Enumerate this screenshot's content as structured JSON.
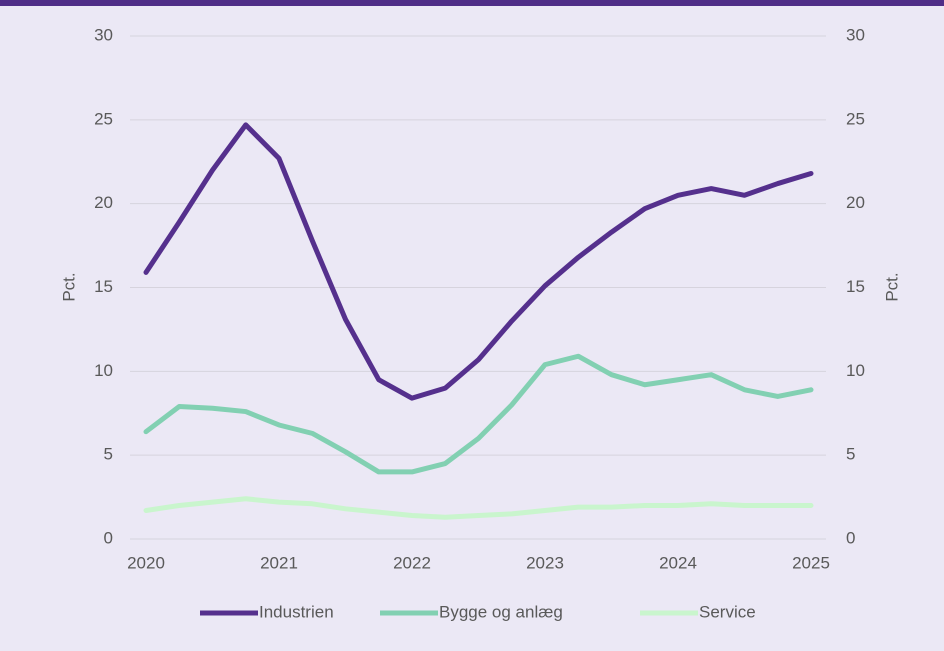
{
  "chart_data": {
    "type": "line",
    "x": [
      2020,
      2020.25,
      2020.5,
      2020.75,
      2021,
      2021.25,
      2021.5,
      2021.75,
      2022,
      2022.25,
      2022.5,
      2022.75,
      2023,
      2023.25,
      2023.5,
      2023.75,
      2024,
      2024.25,
      2024.5,
      2024.75,
      2025
    ],
    "series": [
      {
        "name": "Industrien",
        "color": "#55308d",
        "values": [
          15.9,
          18.9,
          22.0,
          24.7,
          22.7,
          17.8,
          13.1,
          9.5,
          8.4,
          9.0,
          10.7,
          13.0,
          15.1,
          16.8,
          18.3,
          19.7,
          20.5,
          20.9,
          20.5,
          21.2,
          21.8
        ]
      },
      {
        "name": "Bygge og anlæg",
        "color": "#82d0b2",
        "values": [
          6.4,
          7.9,
          7.8,
          7.6,
          6.8,
          6.3,
          5.2,
          4.0,
          4.0,
          4.5,
          6.0,
          8.0,
          10.4,
          10.9,
          9.8,
          9.2,
          9.5,
          9.8,
          8.9,
          8.5,
          8.9
        ]
      },
      {
        "name": "Service",
        "color": "#c9f5cd",
        "values": [
          1.7,
          2.0,
          2.2,
          2.4,
          2.2,
          2.1,
          1.8,
          1.6,
          1.4,
          1.3,
          1.4,
          1.5,
          1.7,
          1.9,
          1.9,
          2.0,
          2.0,
          2.1,
          2.0,
          2.0,
          2.0
        ]
      }
    ],
    "xlim": [
      2020,
      2025
    ],
    "xticks": [
      2020,
      2021,
      2022,
      2023,
      2024,
      2025
    ],
    "ylim": [
      0,
      30
    ],
    "yticks": [
      0,
      5,
      10,
      15,
      20,
      25,
      30
    ],
    "y2lim": [
      0,
      30
    ],
    "y2ticks": [
      0,
      5,
      10,
      15,
      20,
      25,
      30
    ],
    "ylabel": "Pct.",
    "y2label": "Pct.",
    "grid": true,
    "legend": "bottom"
  }
}
